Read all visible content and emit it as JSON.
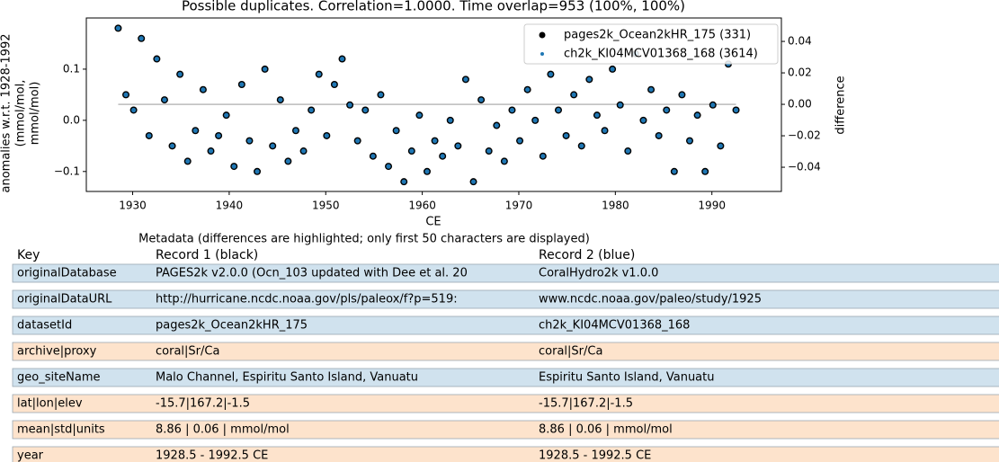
{
  "chart_data": {
    "type": "scatter",
    "title": "Possible duplicates. Correlation=1.0000. Time overlap=953 (100%, 100%)",
    "xlabel": "CE",
    "ylabel": [
      "anomalies w.r.t. 1928-1992",
      "(mmol/mol,",
      "mmol/mol)"
    ],
    "y2label": "difference",
    "x": [
      1928.5,
      1929.3,
      1930.1,
      1930.9,
      1931.7,
      1932.5,
      1933.3,
      1934.1,
      1934.9,
      1935.7,
      1936.5,
      1937.3,
      1938.1,
      1938.9,
      1939.7,
      1940.5,
      1941.3,
      1942.1,
      1942.9,
      1943.7,
      1944.5,
      1945.3,
      1946.1,
      1946.9,
      1947.7,
      1948.5,
      1949.3,
      1950.1,
      1950.9,
      1951.7,
      1952.5,
      1953.3,
      1954.1,
      1954.9,
      1955.7,
      1956.5,
      1957.3,
      1958.1,
      1958.9,
      1959.7,
      1960.5,
      1961.3,
      1962.1,
      1962.9,
      1963.7,
      1964.5,
      1965.3,
      1966.1,
      1966.9,
      1967.7,
      1968.5,
      1969.3,
      1970.1,
      1970.9,
      1971.7,
      1972.5,
      1973.3,
      1974.1,
      1974.9,
      1975.7,
      1976.5,
      1977.3,
      1978.1,
      1978.9,
      1979.7,
      1980.5,
      1981.3,
      1982.1,
      1982.9,
      1983.7,
      1984.5,
      1985.3,
      1986.1,
      1986.9,
      1987.7,
      1988.5,
      1989.3,
      1990.1,
      1990.9,
      1991.7,
      1992.5
    ],
    "series": [
      {
        "name": "pages2k_Ocean2kHR_175 (331)",
        "color": "#000000",
        "values": [
          0.18,
          0.05,
          0.02,
          0.16,
          -0.03,
          0.12,
          0.04,
          -0.05,
          0.09,
          -0.08,
          -0.02,
          0.06,
          -0.06,
          -0.03,
          0.01,
          -0.09,
          0.07,
          -0.04,
          -0.1,
          0.1,
          -0.05,
          0.04,
          -0.08,
          -0.02,
          -0.06,
          0.02,
          0.09,
          -0.03,
          0.07,
          0.12,
          0.03,
          -0.04,
          0.02,
          -0.07,
          0.05,
          -0.09,
          -0.02,
          -0.12,
          -0.06,
          0.01,
          -0.1,
          -0.04,
          -0.07,
          0.0,
          -0.05,
          0.08,
          -0.12,
          0.04,
          -0.06,
          -0.01,
          -0.08,
          0.02,
          -0.04,
          0.06,
          0.0,
          -0.07,
          0.09,
          0.02,
          -0.03,
          0.05,
          -0.05,
          0.08,
          0.01,
          -0.02,
          0.1,
          0.03,
          -0.06,
          0.13,
          0.0,
          0.06,
          -0.03,
          0.02,
          -0.1,
          0.05,
          -0.04,
          0.01,
          -0.1,
          0.03,
          -0.05,
          0.11,
          0.02
        ]
      },
      {
        "name": "ch2k_KI04MCV01368_168 (3614)",
        "color": "#1f77b4",
        "values": [
          0.18,
          0.05,
          0.02,
          0.16,
          -0.03,
          0.12,
          0.04,
          -0.05,
          0.09,
          -0.08,
          -0.02,
          0.06,
          -0.06,
          -0.03,
          0.01,
          -0.09,
          0.07,
          -0.04,
          -0.1,
          0.1,
          -0.05,
          0.04,
          -0.08,
          -0.02,
          -0.06,
          0.02,
          0.09,
          -0.03,
          0.07,
          0.12,
          0.03,
          -0.04,
          0.02,
          -0.07,
          0.05,
          -0.09,
          -0.02,
          -0.12,
          -0.06,
          0.01,
          -0.1,
          -0.04,
          -0.07,
          0.0,
          -0.05,
          0.08,
          -0.12,
          0.04,
          -0.06,
          -0.01,
          -0.08,
          0.02,
          -0.04,
          0.06,
          0.0,
          -0.07,
          0.09,
          0.02,
          -0.03,
          0.05,
          -0.05,
          0.08,
          0.01,
          -0.02,
          0.1,
          0.03,
          -0.06,
          0.13,
          0.0,
          0.06,
          -0.03,
          0.02,
          -0.1,
          0.05,
          -0.04,
          0.01,
          -0.1,
          0.03,
          -0.05,
          0.11,
          0.02
        ]
      }
    ],
    "difference": {
      "x": [
        1928.5,
        1992.5
      ],
      "values": [
        0,
        0
      ],
      "color": "#bbbbbb",
      "axis": "y2"
    },
    "xlim": [
      1925.2,
      1997.2
    ],
    "xticks": [
      1930,
      1940,
      1950,
      1960,
      1970,
      1980,
      1990
    ],
    "ylim": [
      -0.139,
      0.2
    ],
    "yticks": [
      {
        "value": -0.1,
        "label": "−0.1"
      },
      {
        "value": 0,
        "label": "0.0"
      },
      0.1
    ],
    "y2lim": [
      -0.0554,
      0.0549
    ],
    "y2ticks": [
      {
        "value": -0.04,
        "label": "−0.04"
      },
      {
        "value": -0.02,
        "label": "−0.02"
      },
      {
        "value": 0,
        "label": "0.00"
      },
      0.02,
      0.04
    ],
    "legend": "upper right"
  },
  "table": {
    "caption": "Metadata (differences are highlighted; only first 50 characters are displayed)",
    "header": [
      "Key",
      "Record 1 (black)",
      "Record 2 (blue)"
    ],
    "differs_color": "#d0e2ee",
    "same_color": "#fde3cc",
    "rows": [
      {
        "cells": [
          "originalDatabase",
          "PAGES2k v2.0.0 (Ocn_103 updated with Dee et al. 20",
          "CoralHydro2k v1.0.0"
        ],
        "differs": true
      },
      {
        "cells": [
          "originalDataURL",
          "http://hurricane.ncdc.noaa.gov/pls/paleox/f?p=519:",
          "www.ncdc.noaa.gov/paleo/study/1925"
        ],
        "differs": true
      },
      {
        "cells": [
          "datasetId",
          "pages2k_Ocean2kHR_175",
          "ch2k_KI04MCV01368_168"
        ],
        "differs": true
      },
      {
        "cells": [
          "archive|proxy",
          "coral|Sr/Ca",
          "coral|Sr/Ca"
        ],
        "differs": false
      },
      {
        "cells": [
          "geo_siteName",
          "Malo Channel, Espiritu Santo Island, Vanuatu",
          "Espiritu Santo Island, Vanuatu"
        ],
        "differs": true
      },
      {
        "cells": [
          "lat|lon|elev",
          "-15.7|167.2|-1.5",
          "-15.7|167.2|-1.5"
        ],
        "differs": false
      },
      {
        "cells": [
          "mean|std|units",
          "8.86 | 0.06 | mmol/mol",
          "8.86 | 0.06 | mmol/mol"
        ],
        "differs": false
      },
      {
        "cells": [
          "year",
          "1928.5 - 1992.5 CE",
          "1928.5 - 1992.5 CE"
        ],
        "differs": false
      }
    ]
  }
}
